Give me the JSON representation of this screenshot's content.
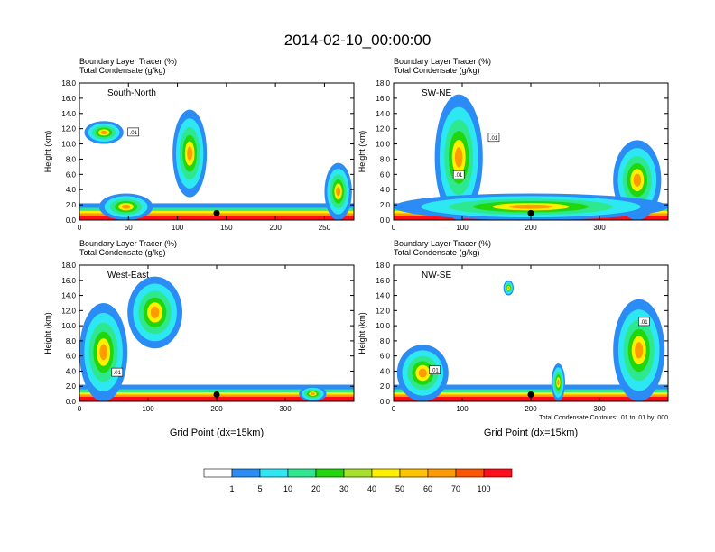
{
  "title": "2014-02-10_00:00:00",
  "colors": {
    "palette": [
      "#ffffff",
      "#2b8cf5",
      "#2de8f2",
      "#2ee88f",
      "#22d60c",
      "#a6e22c",
      "#fff000",
      "#ffc300",
      "#ff9a00",
      "#ff5500",
      "#ff0d1a"
    ]
  },
  "chart_data": [
    {
      "type": "heatmap",
      "title": "Boundary Layer Tracer    (%)",
      "subtitle": "Total Condensate    (g/kg)",
      "label": "South-North",
      "ylabel": "Height (km)",
      "xlabel": "",
      "xticks": [
        0,
        50,
        100,
        150,
        200,
        250
      ],
      "xlim": [
        0,
        280
      ],
      "yticks": [
        "0.0",
        "2.0",
        "4.0",
        "6.0",
        "8.0",
        "10.0",
        "12.0",
        "14.0",
        "16.0",
        "18.0"
      ],
      "ylim": [
        0,
        18
      ],
      "location_marker_x": 140,
      "contour_labels": [
        {
          "x": 55,
          "y": 11.5,
          "text": ".01"
        }
      ]
    },
    {
      "type": "heatmap",
      "title": "Boundary Layer Tracer    (%)",
      "subtitle": "Total Condensate    (g/kg)",
      "label": "SW-NE",
      "ylabel": "Height (km)",
      "xlabel": "",
      "xticks": [
        0,
        100,
        200,
        300
      ],
      "xlim": [
        0,
        400
      ],
      "yticks": [
        "0.0",
        "2.0",
        "4.0",
        "6.0",
        "8.0",
        "10.0",
        "12.0",
        "14.0",
        "16.0",
        "18.0"
      ],
      "ylim": [
        0,
        18
      ],
      "location_marker_x": 200,
      "contour_labels": [
        {
          "x": 146,
          "y": 10.8,
          "text": ".01"
        },
        {
          "x": 95,
          "y": 5.9,
          "text": ".01"
        }
      ]
    },
    {
      "type": "heatmap",
      "title": "Boundary Layer Tracer    (%)",
      "subtitle": "Total Condensate    (g/kg)",
      "label": "West-East",
      "ylabel": "Height (km)",
      "xlabel": "Grid Point (dx=15km)",
      "xticks": [
        0,
        100,
        200,
        300
      ],
      "xlim": [
        0,
        400
      ],
      "yticks": [
        "0.0",
        "2.0",
        "4.0",
        "6.0",
        "8.0",
        "10.0",
        "12.0",
        "14.0",
        "16.0",
        "18.0"
      ],
      "ylim": [
        0,
        18
      ],
      "location_marker_x": 200,
      "contour_labels": [
        {
          "x": 55,
          "y": 3.8,
          "text": ".01"
        }
      ]
    },
    {
      "type": "heatmap",
      "title": "Boundary Layer Tracer    (%)",
      "subtitle": "Total Condensate    (g/kg)",
      "label": "NW-SE",
      "ylabel": "Height (km)",
      "xlabel": "Grid Point (dx=15km)",
      "xticks": [
        0,
        100,
        200,
        300
      ],
      "xlim": [
        0,
        400
      ],
      "yticks": [
        "0.0",
        "2.0",
        "4.0",
        "6.0",
        "8.0",
        "10.0",
        "12.0",
        "14.0",
        "16.0",
        "18.0"
      ],
      "ylim": [
        0,
        18
      ],
      "location_marker_x": 200,
      "contour_note": "Total Condensate Contours: .01 to .01 by .000",
      "contour_labels": [
        {
          "x": 60,
          "y": 4.1,
          "text": ".01"
        },
        {
          "x": 365,
          "y": 10.5,
          "text": ".01"
        }
      ]
    }
  ],
  "legend": {
    "labels": [
      "1",
      "5",
      "10",
      "20",
      "30",
      "40",
      "50",
      "60",
      "70",
      "100"
    ]
  }
}
